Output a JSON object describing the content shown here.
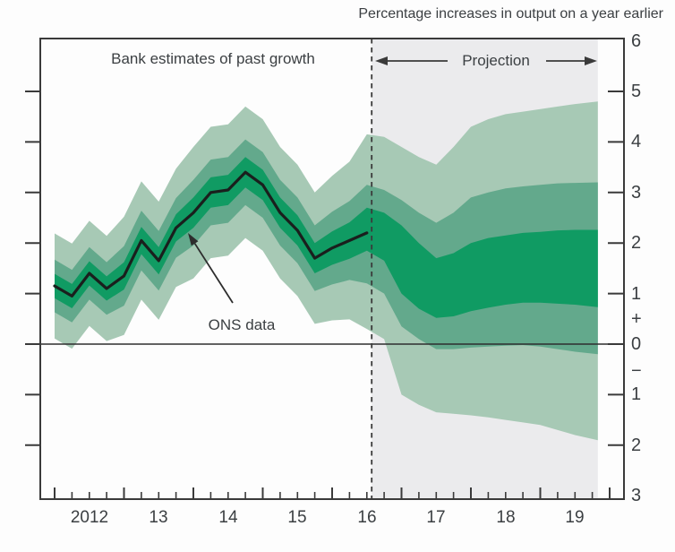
{
  "title": "Percentage increases in output on a year earlier",
  "annotations": {
    "past_label": "Bank estimates of past growth",
    "projection_label": "Projection",
    "ons_label": "ONS data"
  },
  "colors": {
    "band_light": "#a7c9b5",
    "band_mid": "#63a98c",
    "band_dark": "#109b63",
    "projection_bg": "#ebebed",
    "center_line": "#1a1f1d",
    "axis": "#3a3a3a",
    "zero_line": "#2e2e2e",
    "text": "#3b3f42"
  },
  "chart_data": {
    "type": "area",
    "subtype": "fan-chart",
    "title": "Percentage increases in output on a year earlier",
    "xlabel": "",
    "ylabel": "",
    "xlim": [
      2011.8,
      2020.2
    ],
    "ylim": [
      -3,
      6
    ],
    "grid": false,
    "legend": "none",
    "y_axis_side": "right",
    "projection_start_x": 2016.57,
    "projection_end_x": 2019.83,
    "x_tick_labels": [
      "2012",
      "13",
      "14",
      "15",
      "16",
      "17",
      "18",
      "19"
    ],
    "x_tick_label_positions": [
      2012.5,
      2013.5,
      2014.5,
      2015.5,
      2016.5,
      2017.5,
      2018.5,
      2019.5
    ],
    "y_tick_values": [
      5,
      4,
      3,
      2,
      1,
      0,
      -1,
      -2
    ],
    "y_tick_labels": [
      {
        "label": "6",
        "v": 6
      },
      {
        "label": "5",
        "v": 5
      },
      {
        "label": "4",
        "v": 4
      },
      {
        "label": "3",
        "v": 3
      },
      {
        "label": "2",
        "v": 2
      },
      {
        "label": "1",
        "v": 1
      },
      {
        "label": "+",
        "v": 0.5
      },
      {
        "label": "0",
        "v": 0
      },
      {
        "label": "−",
        "v": -0.53
      },
      {
        "label": "1",
        "v": -1
      },
      {
        "label": "2",
        "v": -2
      },
      {
        "label": "3",
        "v": -3
      }
    ],
    "x": [
      2012,
      2012.25,
      2012.5,
      2012.75,
      2013,
      2013.25,
      2013.5,
      2013.75,
      2014,
      2014.25,
      2014.5,
      2014.75,
      2015,
      2015.25,
      2015.5,
      2015.75,
      2016,
      2016.25,
      2016.5,
      2016.75,
      2017,
      2017.25,
      2017.5,
      2017.75,
      2018,
      2018.25,
      2018.5,
      2018.75,
      2019,
      2019.25,
      2019.5,
      2019.83
    ],
    "center_line": {
      "x": [
        2012,
        2012.25,
        2012.5,
        2012.75,
        2013,
        2013.25,
        2013.5,
        2013.75,
        2014,
        2014.25,
        2014.5,
        2014.75,
        2015,
        2015.25,
        2015.5,
        2015.75,
        2016,
        2016.25,
        2016.5
      ],
      "values": [
        1.15,
        0.95,
        1.4,
        1.1,
        1.35,
        2.05,
        1.65,
        2.3,
        2.6,
        3.0,
        3.05,
        3.4,
        3.15,
        2.6,
        2.25,
        1.7,
        1.9,
        2.05,
        2.2
      ]
    },
    "bands": {
      "light": {
        "top": [
          2.19,
          1.99,
          2.44,
          2.14,
          2.52,
          3.22,
          2.82,
          3.47,
          3.9,
          4.3,
          4.35,
          4.7,
          4.45,
          3.9,
          3.55,
          3.0,
          3.33,
          3.61,
          4.15,
          4.1,
          3.9,
          3.7,
          3.55,
          3.9,
          4.3,
          4.45,
          4.55,
          4.6,
          4.65,
          4.7,
          4.75,
          4.8
        ],
        "bottom": [
          0.11,
          -0.09,
          0.36,
          0.06,
          0.18,
          0.88,
          0.48,
          1.13,
          1.3,
          1.7,
          1.75,
          2.1,
          1.85,
          1.3,
          0.95,
          0.4,
          0.47,
          0.49,
          0.3,
          0.1,
          -1.0,
          -1.2,
          -1.35,
          -1.38,
          -1.41,
          -1.45,
          -1.5,
          -1.55,
          -1.6,
          -1.7,
          -1.8,
          -1.9
        ]
      },
      "mid": {
        "top": [
          1.67,
          1.47,
          1.92,
          1.62,
          1.94,
          2.64,
          2.24,
          2.89,
          3.25,
          3.65,
          3.7,
          4.05,
          3.8,
          3.25,
          2.9,
          2.35,
          2.62,
          2.83,
          3.15,
          3.05,
          2.85,
          2.6,
          2.4,
          2.6,
          2.9,
          3.0,
          3.08,
          3.12,
          3.15,
          3.18,
          3.19,
          3.2
        ],
        "bottom": [
          0.63,
          0.43,
          0.88,
          0.58,
          0.76,
          1.46,
          1.06,
          1.71,
          1.95,
          2.35,
          2.4,
          2.75,
          2.5,
          1.95,
          1.6,
          1.05,
          1.18,
          1.27,
          1.2,
          1.0,
          0.35,
          0.1,
          -0.1,
          -0.1,
          -0.07,
          -0.05,
          -0.03,
          -0.02,
          -0.05,
          -0.1,
          -0.15,
          -0.2
        ]
      },
      "dark": {
        "top": [
          1.39,
          1.19,
          1.64,
          1.34,
          1.62,
          2.32,
          1.92,
          2.57,
          2.9,
          3.3,
          3.35,
          3.7,
          3.45,
          2.9,
          2.55,
          2.0,
          2.23,
          2.41,
          2.7,
          2.6,
          2.35,
          2.0,
          1.7,
          1.8,
          2.0,
          2.1,
          2.15,
          2.2,
          2.22,
          2.25,
          2.26,
          2.26
        ],
        "bottom": [
          0.91,
          0.71,
          1.16,
          0.86,
          1.08,
          1.78,
          1.38,
          2.03,
          2.3,
          2.7,
          2.75,
          3.1,
          2.85,
          2.3,
          1.95,
          1.4,
          1.57,
          1.69,
          1.85,
          1.65,
          1.0,
          0.7,
          0.52,
          0.55,
          0.65,
          0.72,
          0.78,
          0.82,
          0.82,
          0.8,
          0.78,
          0.73
        ]
      }
    }
  }
}
